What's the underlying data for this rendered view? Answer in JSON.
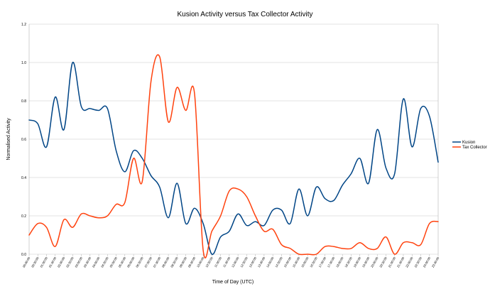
{
  "chart_data": {
    "type": "line",
    "title": "Kusion Activity versus Tax Collector Activity",
    "xlabel": "Time of Day (UTC)",
    "ylabel": "Normalised Activity",
    "ylim": [
      0,
      1.2
    ],
    "yticks": [
      "0.0",
      "0.2",
      "0.4",
      "0.6",
      "0.8",
      "1.0",
      "1.2"
    ],
    "grid": true,
    "legend_position": "right",
    "categories": [
      "00:00:00",
      "00:30:00",
      "01:00:00",
      "01:30:00",
      "02:00:00",
      "02:30:00",
      "03:00:00",
      "03:30:00",
      "04:00:00",
      "04:30:00",
      "05:00:00",
      "05:30:00",
      "06:00:00",
      "06:30:00",
      "07:00:00",
      "07:30:00",
      "08:00:00",
      "08:30:00",
      "09:00:00",
      "09:30:00",
      "10:00:00",
      "10:30:00",
      "11:00:00",
      "11:30:00",
      "12:00:00",
      "12:30:00",
      "13:00:00",
      "13:30:00",
      "14:00:00",
      "14:30:00",
      "15:00:00",
      "15:30:00",
      "16:00:00",
      "16:30:00",
      "17:00:00",
      "17:30:00",
      "18:00:00",
      "18:30:00",
      "19:00:00",
      "19:30:00",
      "20:00:00",
      "20:30:00",
      "21:00:00",
      "21:30:00",
      "22:00:00",
      "22:30:00",
      "23:00:00",
      "23:30:00"
    ],
    "series": [
      {
        "name": "Kusion",
        "color": "#004586",
        "values": [
          0.7,
          0.68,
          0.56,
          0.82,
          0.65,
          1.0,
          0.77,
          0.76,
          0.75,
          0.76,
          0.54,
          0.43,
          0.54,
          0.5,
          0.41,
          0.35,
          0.19,
          0.37,
          0.16,
          0.24,
          0.16,
          0.0,
          0.09,
          0.12,
          0.21,
          0.15,
          0.17,
          0.15,
          0.23,
          0.23,
          0.16,
          0.34,
          0.2,
          0.35,
          0.29,
          0.28,
          0.36,
          0.42,
          0.5,
          0.37,
          0.65,
          0.45,
          0.42,
          0.81,
          0.56,
          0.76,
          0.72,
          0.48
        ]
      },
      {
        "name": "Tax Collector",
        "color": "#ff420e",
        "values": [
          0.1,
          0.16,
          0.14,
          0.04,
          0.18,
          0.14,
          0.21,
          0.2,
          0.19,
          0.2,
          0.26,
          0.27,
          0.5,
          0.38,
          0.9,
          1.03,
          0.69,
          0.87,
          0.75,
          0.84,
          0.02,
          0.12,
          0.2,
          0.33,
          0.34,
          0.3,
          0.2,
          0.12,
          0.13,
          0.05,
          0.03,
          0.0,
          0.0,
          0.0,
          0.04,
          0.04,
          0.03,
          0.03,
          0.06,
          0.03,
          0.03,
          0.09,
          0.0,
          0.06,
          0.06,
          0.05,
          0.16,
          0.17
        ]
      }
    ]
  }
}
